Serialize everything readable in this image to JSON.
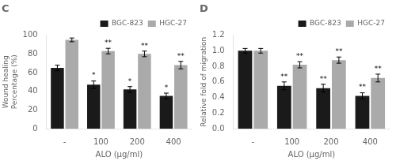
{
  "chart_data": [
    {
      "type": "bar",
      "title": "C",
      "xlabel": "ALO (μg/ml)",
      "ylabel": "Wound healing\nPercentage (%)",
      "categories": [
        "-",
        "100",
        "200",
        "400"
      ],
      "series": [
        {
          "name": "BGC-823",
          "color": "#1a1a1a",
          "values": [
            65,
            47,
            42,
            35
          ],
          "errors": [
            3,
            4,
            3,
            3
          ],
          "annotations": [
            null,
            "*",
            "*",
            "*"
          ]
        },
        {
          "name": "HGC-27",
          "color": "#aaaaaa",
          "values": [
            95,
            83,
            80,
            68
          ],
          "errors": [
            2,
            3,
            3,
            4
          ],
          "annotations": [
            null,
            "**",
            "**",
            "**"
          ]
        }
      ],
      "ylim": [
        0,
        100
      ],
      "yticks": [
        0,
        20,
        40,
        60,
        80,
        100
      ],
      "grid": false,
      "legend": "upper right"
    },
    {
      "type": "bar",
      "title": "D",
      "xlabel": "ALO (μg/ml)",
      "ylabel": "Relative fold of migration",
      "categories": [
        "-",
        "100",
        "200",
        "400"
      ],
      "series": [
        {
          "name": "BGC-823",
          "color": "#1a1a1a",
          "values": [
            1.0,
            0.55,
            0.52,
            0.42
          ],
          "errors": [
            0.03,
            0.05,
            0.05,
            0.04
          ],
          "annotations": [
            null,
            "**",
            "**",
            "**"
          ]
        },
        {
          "name": "HGC-27",
          "color": "#aaaaaa",
          "values": [
            1.0,
            0.82,
            0.88,
            0.65
          ],
          "errors": [
            0.03,
            0.04,
            0.04,
            0.05
          ],
          "annotations": [
            null,
            "**",
            "**",
            "**"
          ]
        }
      ],
      "ylim": [
        0.0,
        1.2
      ],
      "yticks": [
        {
          "value": 0.0,
          "label": "0.0"
        },
        {
          "value": 0.2,
          "label": "0.2"
        },
        {
          "value": 0.4,
          "label": "0.4"
        },
        {
          "value": 0.6,
          "label": "0.6"
        },
        {
          "value": 0.8,
          "label": "0.8"
        },
        {
          "value": 1.0,
          "label": "1.0"
        },
        {
          "value": 1.2,
          "label": "1.2"
        }
      ],
      "grid": false,
      "legend": "upper right"
    }
  ]
}
